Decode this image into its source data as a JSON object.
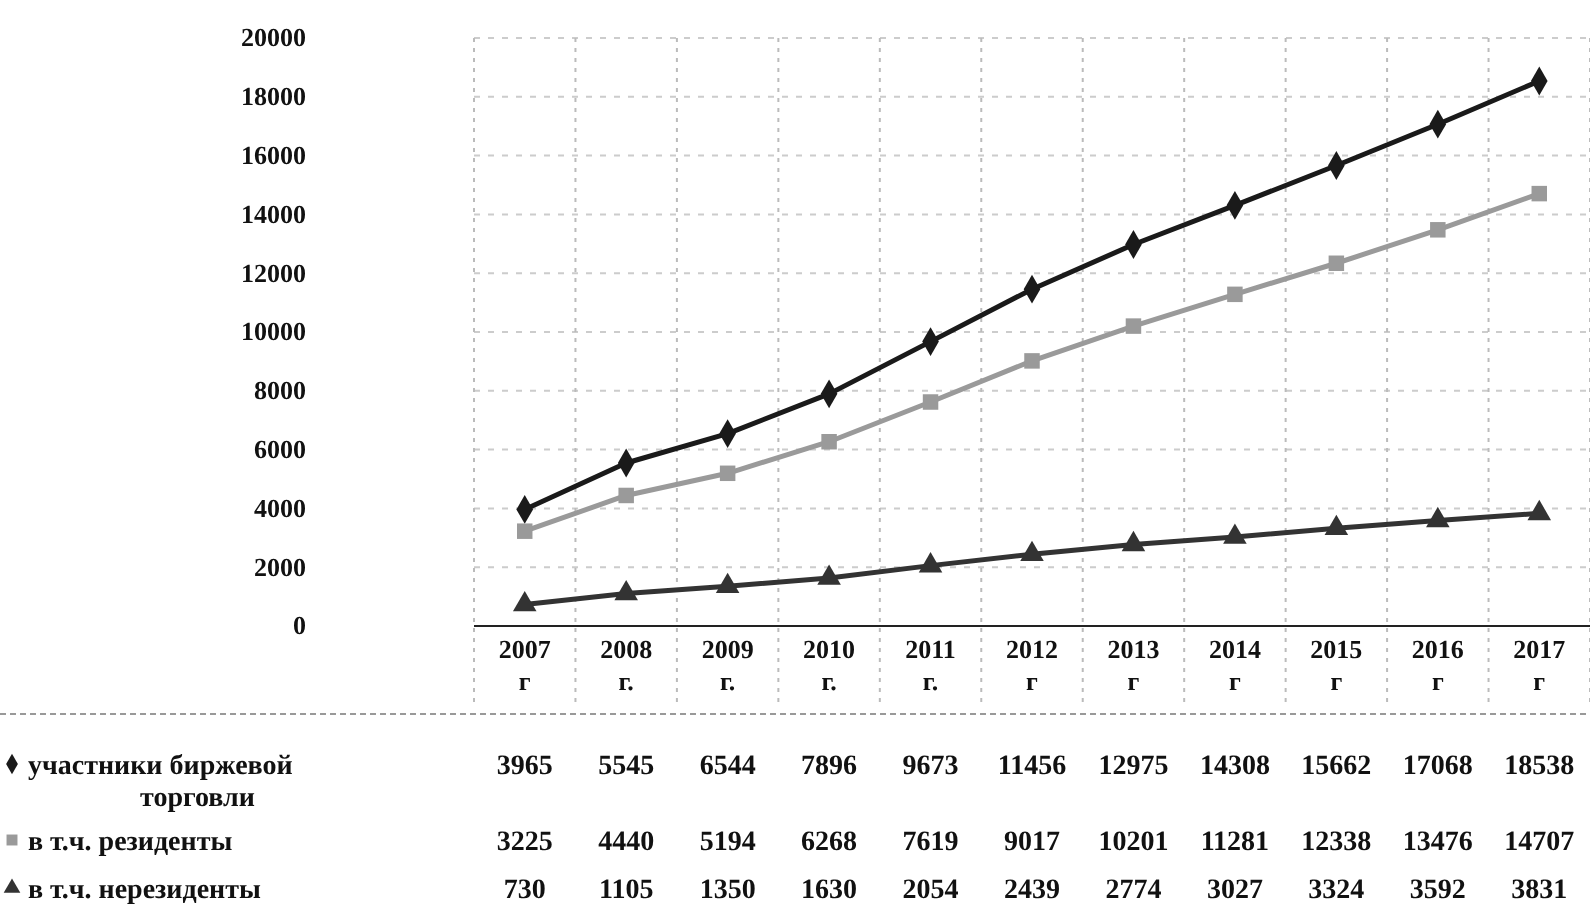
{
  "chart_data": {
    "type": "line",
    "categories": [
      "2007 г",
      "2008 г.",
      "2009 г.",
      "2010 г.",
      "2011 г.",
      "2012 г",
      "2013 г",
      "2014 г",
      "2015 г",
      "2016 г",
      "2017 г"
    ],
    "series": [
      {
        "name": "участники биржевой торговли",
        "color": "#1a1a1a",
        "marker": "diamond",
        "values": [
          3965,
          5545,
          6544,
          7896,
          9673,
          11456,
          12975,
          14308,
          15662,
          17068,
          18538
        ]
      },
      {
        "name": "в т.ч. резиденты",
        "color": "#9a9a9a",
        "marker": "square",
        "values": [
          3225,
          4440,
          5194,
          6268,
          7619,
          9017,
          10201,
          11281,
          12338,
          13476,
          14707
        ]
      },
      {
        "name": "в т.ч. нерезиденты",
        "color": "#333333",
        "marker": "triangle",
        "values": [
          730,
          1105,
          1350,
          1630,
          2054,
          2439,
          2774,
          3027,
          3324,
          3592,
          3831
        ]
      }
    ],
    "ylim": [
      0,
      20000
    ],
    "yticks": [
      0,
      2000,
      4000,
      6000,
      8000,
      10000,
      12000,
      14000,
      16000,
      18000,
      20000
    ],
    "grid": true,
    "data_labels": true,
    "legend": "bottom left"
  }
}
